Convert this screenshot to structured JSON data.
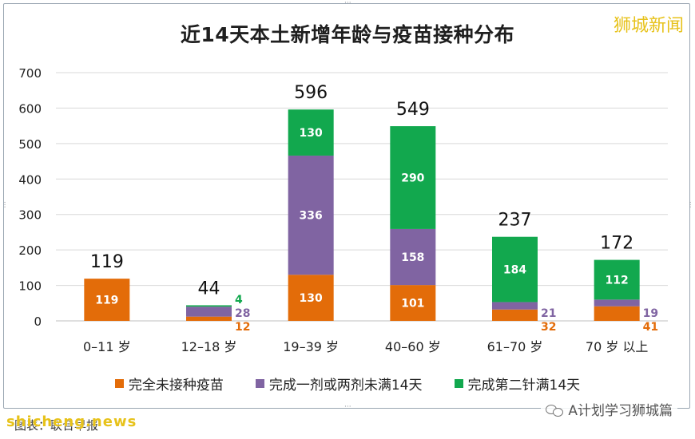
{
  "watermark_top": "狮城新闻",
  "watermark_bottom": "shicheng.news",
  "source_label": "图表：联合早报",
  "wechat_label": "A计划学习狮城篇",
  "colors": {
    "unvaccinated": "#E36C09",
    "partial": "#8064A2",
    "full": "#12A84E",
    "grid": "#d9d9d9",
    "axis_text": "#222222"
  },
  "chart_data": {
    "type": "bar",
    "stacked": true,
    "title": "近14天本土新增年龄与疫苗接种分布",
    "categories": [
      "0–11 岁",
      "12–18 岁",
      "19–39 岁",
      "40–60 岁",
      "61–70 岁",
      "70 岁 以上"
    ],
    "series": [
      {
        "name": "完全未接种疫苗",
        "values": [
          119,
          12,
          130,
          101,
          32,
          41
        ]
      },
      {
        "name": "完成一剂或两剂未满14天",
        "values": [
          0,
          28,
          336,
          158,
          21,
          19
        ]
      },
      {
        "name": "完成第二针满14天",
        "values": [
          0,
          4,
          130,
          290,
          184,
          112
        ]
      }
    ],
    "totals": [
      119,
      44,
      596,
      549,
      237,
      172
    ],
    "ylim": [
      0,
      700
    ],
    "yticks": [
      0,
      100,
      200,
      300,
      400,
      500,
      600,
      700
    ],
    "grid": true,
    "legend_position": "bottom"
  }
}
